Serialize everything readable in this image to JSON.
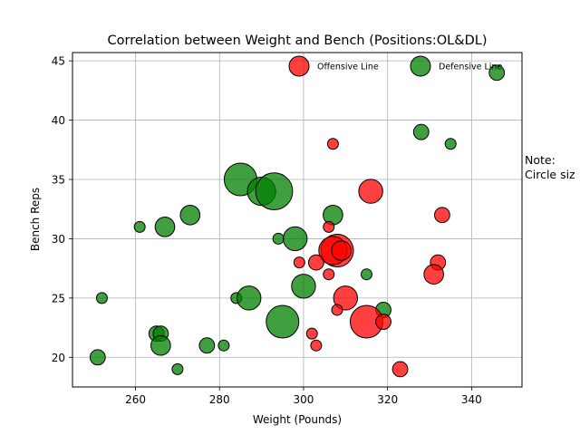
{
  "chart_data": {
    "type": "scatter",
    "title": "Correlation between Weight and Bench (Positions:OL&DL)",
    "xlabel": "Weight (Pounds)",
    "ylabel": "Bench Reps",
    "xlim": [
      245,
      352
    ],
    "ylim": [
      17.5,
      45.7
    ],
    "x_ticks": [
      260,
      280,
      300,
      320,
      340
    ],
    "y_ticks": [
      20,
      25,
      30,
      35,
      40,
      45
    ],
    "grid": true,
    "legend_position": "top-right",
    "note": "Note:\nCircle siz",
    "series": [
      {
        "name": "Offensive Line",
        "color": "#ff0000",
        "points": [
          {
            "x": 307,
            "y": 38,
            "size": 1
          },
          {
            "x": 316,
            "y": 34,
            "size": 4
          },
          {
            "x": 333,
            "y": 32,
            "size": 2
          },
          {
            "x": 306,
            "y": 31,
            "size": 1
          },
          {
            "x": 308,
            "y": 29,
            "size": 6
          },
          {
            "x": 307,
            "y": 29,
            "size": 5
          },
          {
            "x": 309,
            "y": 29,
            "size": 3
          },
          {
            "x": 299,
            "y": 28,
            "size": 1
          },
          {
            "x": 303,
            "y": 28,
            "size": 2
          },
          {
            "x": 332,
            "y": 28,
            "size": 2
          },
          {
            "x": 306,
            "y": 27,
            "size": 1
          },
          {
            "x": 331,
            "y": 27,
            "size": 3
          },
          {
            "x": 310,
            "y": 25,
            "size": 4
          },
          {
            "x": 308,
            "y": 24,
            "size": 1
          },
          {
            "x": 315,
            "y": 23,
            "size": 6
          },
          {
            "x": 319,
            "y": 23,
            "size": 2
          },
          {
            "x": 302,
            "y": 22,
            "size": 1
          },
          {
            "x": 303,
            "y": 21,
            "size": 1
          },
          {
            "x": 323,
            "y": 19,
            "size": 2
          }
        ]
      },
      {
        "name": "Defensive Line",
        "color": "#008000",
        "points": [
          {
            "x": 346,
            "y": 44,
            "size": 2
          },
          {
            "x": 328,
            "y": 39,
            "size": 2
          },
          {
            "x": 335,
            "y": 38,
            "size": 1
          },
          {
            "x": 285,
            "y": 35,
            "size": 6
          },
          {
            "x": 290,
            "y": 34,
            "size": 5
          },
          {
            "x": 293,
            "y": 34,
            "size": 7
          },
          {
            "x": 273,
            "y": 32,
            "size": 3
          },
          {
            "x": 307,
            "y": 32,
            "size": 3
          },
          {
            "x": 261,
            "y": 31,
            "size": 1
          },
          {
            "x": 267,
            "y": 31,
            "size": 3
          },
          {
            "x": 294,
            "y": 30,
            "size": 1
          },
          {
            "x": 298,
            "y": 30,
            "size": 4
          },
          {
            "x": 315,
            "y": 27,
            "size": 1
          },
          {
            "x": 300,
            "y": 26,
            "size": 4
          },
          {
            "x": 252,
            "y": 25,
            "size": 1
          },
          {
            "x": 284,
            "y": 25,
            "size": 1
          },
          {
            "x": 287,
            "y": 25,
            "size": 4
          },
          {
            "x": 319,
            "y": 24,
            "size": 2
          },
          {
            "x": 295,
            "y": 23,
            "size": 6
          },
          {
            "x": 265,
            "y": 22,
            "size": 2
          },
          {
            "x": 266,
            "y": 22,
            "size": 2
          },
          {
            "x": 266,
            "y": 21,
            "size": 3
          },
          {
            "x": 277,
            "y": 21,
            "size": 2
          },
          {
            "x": 281,
            "y": 21,
            "size": 1
          },
          {
            "x": 251,
            "y": 20,
            "size": 2
          },
          {
            "x": 270,
            "y": 19,
            "size": 1
          }
        ]
      }
    ]
  }
}
